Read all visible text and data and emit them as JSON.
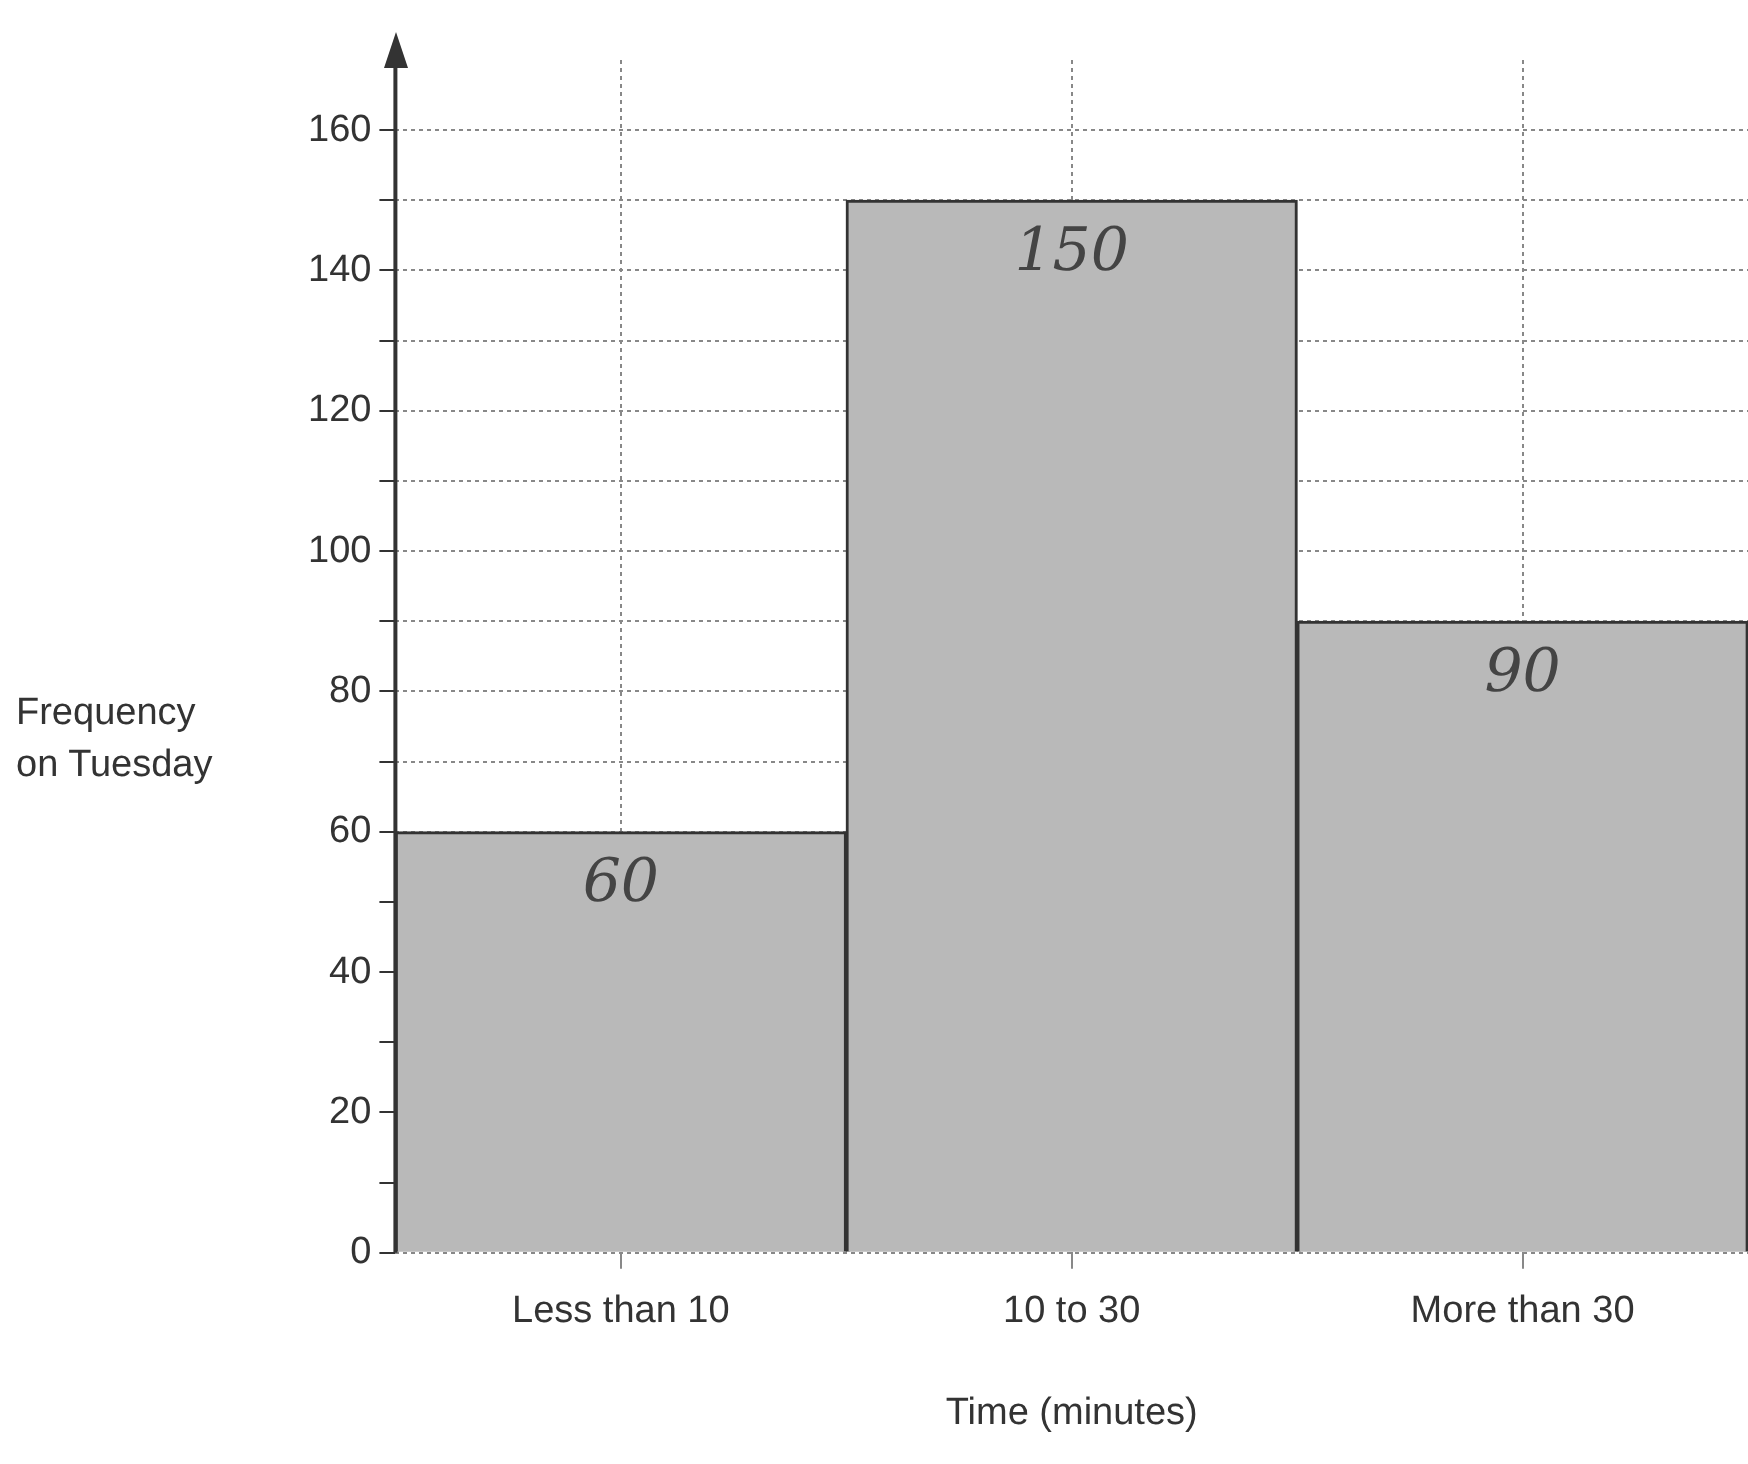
{
  "chart_data": {
    "type": "bar",
    "xlabel": "Time (minutes)",
    "ylabel": "Frequency\non Tuesday",
    "categories": [
      "Less than 10",
      "10 to 30",
      "More than 30"
    ],
    "values": [
      60,
      150,
      90
    ],
    "color": "#b9b9b9",
    "data_labels": true,
    "ylim": [
      0,
      170
    ],
    "yticks": [
      0,
      {
        "value": 10,
        "label": null
      },
      20,
      {
        "value": 30,
        "label": null
      },
      40,
      {
        "value": 50,
        "label": null
      },
      60,
      {
        "value": 70,
        "label": null
      },
      80,
      {
        "value": 90,
        "label": null
      },
      100,
      {
        "value": 110,
        "label": null
      },
      120,
      {
        "value": 130,
        "label": null
      },
      140,
      {
        "value": 150,
        "label": null
      },
      160
    ],
    "grid": true,
    "legend": false
  }
}
